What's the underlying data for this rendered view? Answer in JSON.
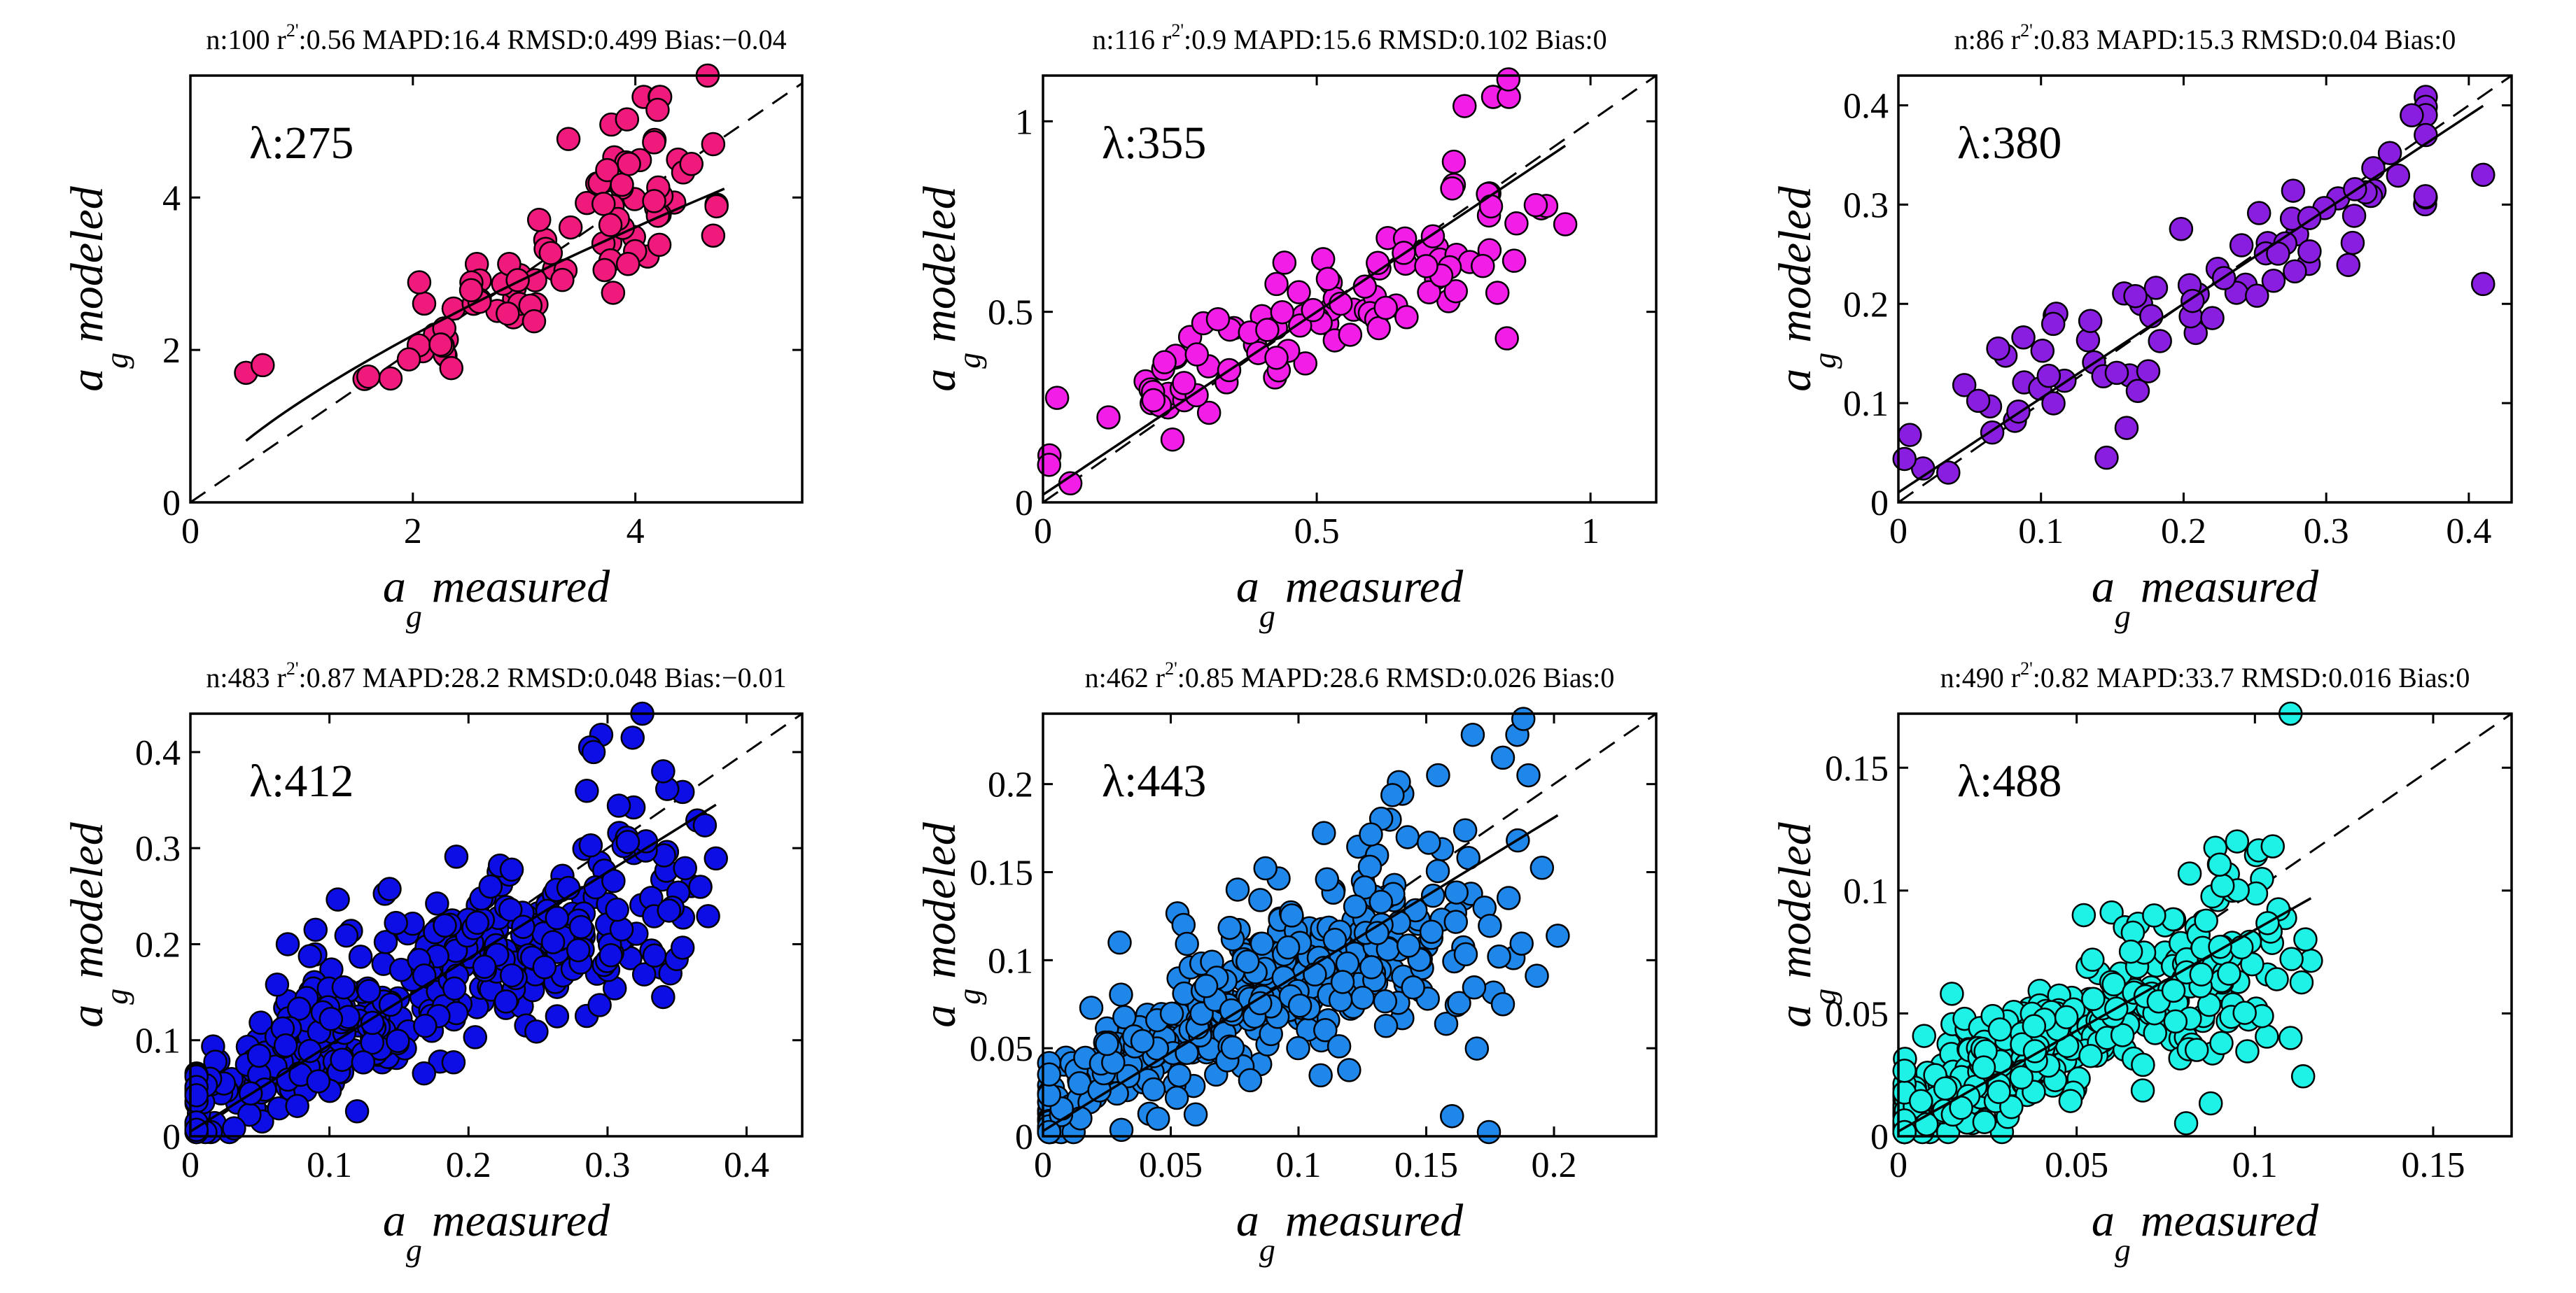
{
  "chart_data": [
    {
      "type": "scatter",
      "lambda_label": "λ:275",
      "stats": {
        "prefix": "n:100 r",
        "sup": "2'",
        "suffix": ":0.56 MAPD:16.4 RMSD:0.499 Bias:−0.04"
      },
      "xlabel": {
        "var": "a",
        "sub": "g",
        "word": "measured"
      },
      "ylabel": {
        "var": "a",
        "sub": "g",
        "word": "modeled"
      },
      "xlim": [
        0,
        5.5
      ],
      "ylim": [
        0,
        5.6
      ],
      "xticks": [
        0,
        2,
        4
      ],
      "yticks": [
        0,
        2,
        4
      ],
      "xtick_labels": [
        "0",
        "2",
        "4"
      ],
      "ytick_labels": [
        "0",
        "2",
        "4"
      ],
      "color": "#f0197c",
      "n": 100,
      "seed": 11,
      "fit": {
        "type": "power",
        "a": 1.33,
        "b": 0.72
      },
      "clusters": [
        [
          2.7,
          2.7,
          0.45,
          0.4,
          0.7,
          0.7
        ],
        [
          4.0,
          4.1,
          0.35,
          0.6,
          0.5,
          0.7
        ]
      ],
      "outliers": [
        [
          4.65,
          5.6
        ],
        [
          0.5,
          1.7
        ],
        [
          0.65,
          1.8
        ],
        [
          4.7,
          4.7
        ],
        [
          4.7,
          3.5
        ],
        [
          3.8,
          2.75
        ],
        [
          1.6,
          1.65
        ],
        [
          4.2,
          5.15
        ]
      ]
    },
    {
      "type": "scatter",
      "lambda_label": "λ:355",
      "stats": {
        "prefix": "n:116 r",
        "sup": "2'",
        "suffix": ":0.9 MAPD:15.6 RMSD:0.102 Bias:0"
      },
      "xlabel": {
        "var": "a",
        "sub": "g",
        "word": "measured"
      },
      "ylabel": {
        "var": "a",
        "sub": "g",
        "word": "modeled"
      },
      "xlim": [
        0,
        1.12
      ],
      "ylim": [
        0,
        1.12
      ],
      "xticks": [
        0,
        0.5,
        1
      ],
      "yticks": [
        0,
        0.5,
        1
      ],
      "xtick_labels": [
        "0",
        "0.5",
        "1"
      ],
      "ytick_labels": [
        "0",
        "0.5",
        "1"
      ],
      "color": "#f21ee8",
      "n": 116,
      "seed": 23,
      "fit": {
        "type": "linear",
        "m": 0.96,
        "c": 0.02
      },
      "clusters": [
        [
          0.45,
          0.45,
          0.2,
          0.06,
          0.62,
          0.85
        ],
        [
          0.78,
          0.75,
          0.08,
          0.15,
          0.25,
          0.15
        ]
      ],
      "outliers": [
        [
          0.85,
          1.11
        ],
        [
          0.77,
          1.04
        ],
        [
          0.05,
          0.05
        ],
        [
          0.83,
          0.55
        ],
        [
          0.7,
          0.62
        ],
        [
          0.9,
          0.78
        ]
      ]
    },
    {
      "type": "scatter",
      "lambda_label": "λ:380",
      "stats": {
        "prefix": "n:86 r",
        "sup": "2'",
        "suffix": ":0.83 MAPD:15.3 RMSD:0.04 Bias:0"
      },
      "xlabel": {
        "var": "a",
        "sub": "g",
        "word": "measured"
      },
      "ylabel": {
        "var": "a",
        "sub": "g",
        "word": "modeled"
      },
      "xlim": [
        0,
        0.43
      ],
      "ylim": [
        0,
        0.43
      ],
      "xticks": [
        0,
        0.1,
        0.2,
        0.3,
        0.4
      ],
      "yticks": [
        0,
        0.1,
        0.2,
        0.3,
        0.4
      ],
      "xtick_labels": [
        "0",
        "0.1",
        "0.2",
        "0.3",
        "0.4"
      ],
      "ytick_labels": [
        "0",
        "0.1",
        "0.2",
        "0.3",
        "0.4"
      ],
      "color": "#8a1ee0",
      "n": 86,
      "seed": 37,
      "fit": {
        "type": "linear",
        "m": 0.95,
        "c": 0.01
      },
      "clusters": [
        [
          0.22,
          0.22,
          0.1,
          0.03,
          0.8,
          1.0
        ]
      ],
      "outliers": [
        [
          0.41,
          0.22
        ],
        [
          0.146,
          0.045
        ],
        [
          0.41,
          0.33
        ],
        [
          0.36,
          0.39
        ],
        [
          0.035,
          0.03
        ],
        [
          0.07,
          0.155
        ],
        [
          0.16,
          0.075
        ]
      ]
    },
    {
      "type": "scatter",
      "lambda_label": "λ:412",
      "stats": {
        "prefix": "n:483 r",
        "sup": "2'",
        "suffix": ":0.87 MAPD:28.2 RMSD:0.048 Bias:−0.01"
      },
      "xlabel": {
        "var": "a",
        "sub": "g",
        "word": "measured"
      },
      "ylabel": {
        "var": "a",
        "sub": "g",
        "word": "modeled"
      },
      "xlim": [
        0,
        0.44
      ],
      "ylim": [
        0,
        0.44
      ],
      "xticks": [
        0,
        0.1,
        0.2,
        0.3,
        0.4
      ],
      "yticks": [
        0,
        0.1,
        0.2,
        0.3,
        0.4
      ],
      "xtick_labels": [
        "0",
        "0.1",
        "0.2",
        "0.3",
        "0.4"
      ],
      "ytick_labels": [
        "0",
        "0.1",
        "0.2",
        "0.3",
        "0.4"
      ],
      "color": "#0d0de6",
      "n": 483,
      "seed": 41,
      "fit": {
        "type": "linear",
        "m": 0.9,
        "c": 0.005
      },
      "clusters": [
        [
          0.1,
          0.1,
          0.07,
          0.03,
          0.6,
          1.0
        ],
        [
          0.32,
          0.25,
          0.04,
          0.08,
          0.25,
          0.2
        ],
        [
          0.22,
          0.2,
          0.05,
          0.04,
          0.15,
          0.6
        ]
      ],
      "outliers": [
        [
          0.325,
          0.44
        ],
        [
          0.29,
          0.4
        ],
        [
          0.34,
          0.38
        ],
        [
          0.34,
          0.145
        ],
        [
          0.07,
          0.2
        ],
        [
          0.09,
          0.215
        ]
      ]
    },
    {
      "type": "scatter",
      "lambda_label": "λ:443",
      "stats": {
        "prefix": "n:462 r",
        "sup": "2'",
        "suffix": ":0.85 MAPD:28.6 RMSD:0.026 Bias:0"
      },
      "xlabel": {
        "var": "a",
        "sub": "g",
        "word": "measured"
      },
      "ylabel": {
        "var": "a",
        "sub": "g",
        "word": "modeled"
      },
      "xlim": [
        0,
        0.24
      ],
      "ylim": [
        0,
        0.24
      ],
      "xticks": [
        0,
        0.05,
        0.1,
        0.15,
        0.2
      ],
      "yticks": [
        0,
        0.05,
        0.1,
        0.15,
        0.2
      ],
      "xtick_labels": [
        "0",
        "0.05",
        "0.1",
        "0.15",
        "0.2"
      ],
      "ytick_labels": [
        "0",
        "0.05",
        "0.1",
        "0.15",
        "0.2"
      ],
      "color": "#1f86ea",
      "n": 462,
      "seed": 53,
      "fit": {
        "type": "linear",
        "m": 0.89,
        "c": 0.003
      },
      "clusters": [
        [
          0.055,
          0.055,
          0.04,
          0.016,
          0.6,
          1.0
        ],
        [
          0.16,
          0.13,
          0.025,
          0.045,
          0.25,
          0.2
        ],
        [
          0.11,
          0.1,
          0.03,
          0.025,
          0.15,
          0.6
        ]
      ],
      "outliers": [
        [
          0.188,
          0.237
        ],
        [
          0.18,
          0.215
        ],
        [
          0.19,
          0.205
        ],
        [
          0.03,
          0.11
        ],
        [
          0.045,
          0.01
        ],
        [
          0.18,
          0.075
        ]
      ]
    },
    {
      "type": "scatter",
      "lambda_label": "λ:488",
      "stats": {
        "prefix": "n:490 r",
        "sup": "2'",
        "suffix": ":0.82 MAPD:33.7 RMSD:0.016 Bias:0"
      },
      "xlabel": {
        "var": "a",
        "sub": "g",
        "word": "measured"
      },
      "ylabel": {
        "var": "a",
        "sub": "g",
        "word": "modeled"
      },
      "xlim": [
        0,
        0.172
      ],
      "ylim": [
        0,
        0.172
      ],
      "xticks": [
        0,
        0.05,
        0.1,
        0.15
      ],
      "yticks": [
        0,
        0.05,
        0.1,
        0.15
      ],
      "xtick_labels": [
        "0",
        "0.05",
        "0.1",
        "0.15"
      ],
      "ytick_labels": [
        "0",
        "0.05",
        "0.1",
        "0.15"
      ],
      "color": "#1ef1e6",
      "n": 490,
      "seed": 67,
      "fit": {
        "type": "linear",
        "m": 0.82,
        "c": 0.002
      },
      "clusters": [
        [
          0.03,
          0.028,
          0.02,
          0.01,
          0.6,
          1.0
        ],
        [
          0.085,
          0.07,
          0.014,
          0.022,
          0.4,
          0.3
        ]
      ],
      "outliers": [
        [
          0.11,
          0.172
        ],
        [
          0.095,
          0.12
        ],
        [
          0.105,
          0.118
        ],
        [
          0.11,
          0.04
        ],
        [
          0.015,
          0.058
        ],
        [
          0.052,
          0.09
        ]
      ]
    }
  ]
}
